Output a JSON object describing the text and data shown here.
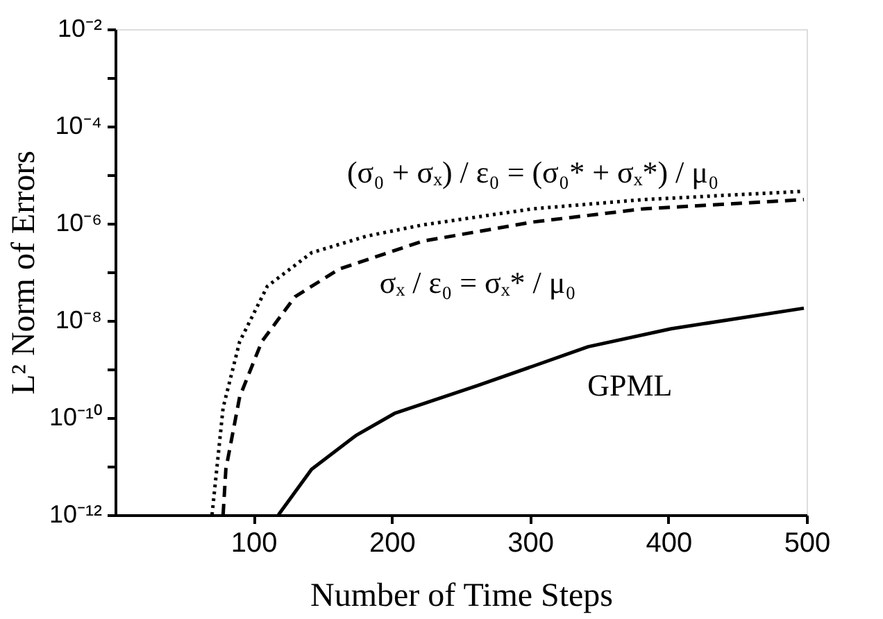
{
  "chart_data": {
    "type": "line",
    "xlabel": "Number of Time Steps",
    "ylabel": "L² Norm of Errors",
    "log": "y",
    "grid": false,
    "xlim": [
      0,
      500
    ],
    "xticks": [
      100,
      200,
      300,
      400,
      500
    ],
    "ylim": [
      1e-12,
      0.01
    ],
    "yticks": [
      {
        "value": 1e-12,
        "label": "10⁻¹²"
      },
      {
        "value": 1e-11,
        "label": null
      },
      {
        "value": 1e-10,
        "label": "10⁻¹⁰"
      },
      {
        "value": 1e-09,
        "label": null
      },
      {
        "value": 1e-08,
        "label": "10⁻⁸"
      },
      {
        "value": 1e-07,
        "label": null
      },
      {
        "value": 1e-06,
        "label": "10⁻⁶"
      },
      {
        "value": 1e-05,
        "label": null
      },
      {
        "value": 0.0001,
        "label": "10⁻⁴"
      },
      {
        "value": 0.001,
        "label": null
      },
      {
        "value": 0.01,
        "label": "10⁻²"
      }
    ],
    "series": [
      {
        "name": "(σ₀ + σₓ) / ε₀ = (σ₀* + σₓ*) / μ₀",
        "color": "#000000",
        "line_style": "dotted",
        "x": [
          70,
          78,
          90,
          110,
          142,
          182,
          222,
          302,
          382,
          498
        ],
        "values": [
          1e-12,
          1.6e-10,
          3.7e-09,
          5.1e-08,
          2.5e-07,
          5.5e-07,
          9.3e-07,
          2e-06,
          3.1e-06,
          4.6e-06
        ]
      },
      {
        "name": "σₓ / ε₀ = σₓ* / μ₀",
        "color": "#000000",
        "line_style": "dashed",
        "x": [
          78,
          80,
          90,
          106,
          130,
          162,
          222,
          302,
          382,
          498
        ],
        "values": [
          1e-12,
          8.7e-12,
          2.7e-10,
          3.7e-09,
          3.1e-08,
          1.15e-07,
          4.3e-07,
          1.07e-06,
          2e-06,
          3.1e-06
        ]
      },
      {
        "name": "GPML",
        "color": "#000000",
        "line_style": "solid",
        "x": [
          118,
          142,
          174,
          202,
          262,
          302,
          342,
          402,
          498
        ],
        "values": [
          1e-12,
          8.7e-12,
          4.3e-11,
          1.23e-10,
          4.6e-10,
          1.15e-09,
          2.9e-09,
          6.8e-09,
          1.8e-08
        ]
      }
    ]
  }
}
